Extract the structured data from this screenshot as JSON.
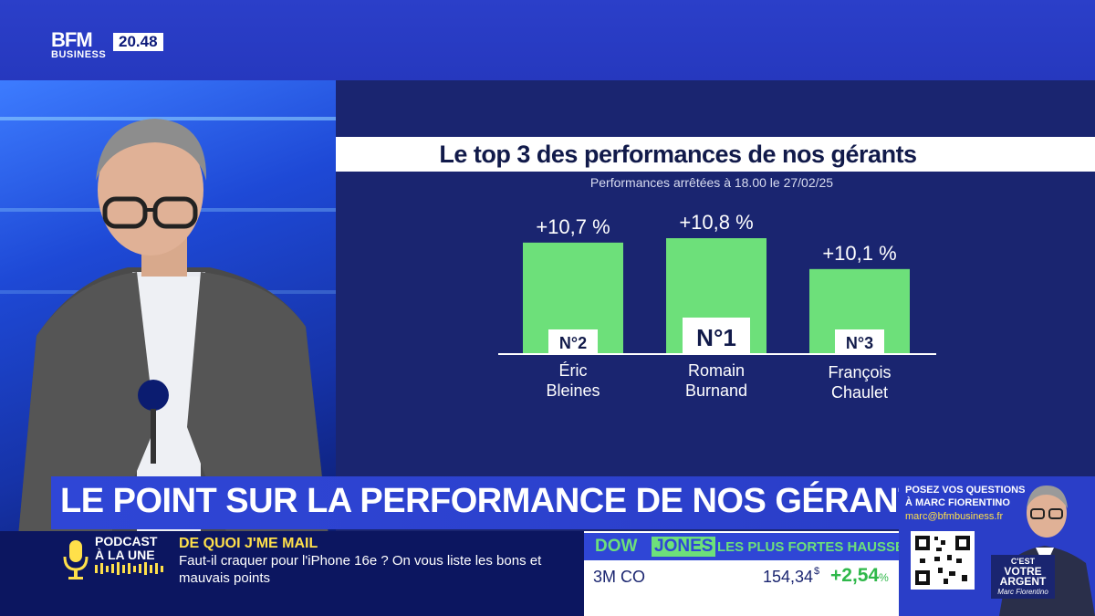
{
  "channel": {
    "logo_main": "BFM",
    "logo_sub": "BUSINESS",
    "time": "20.48"
  },
  "lower_third": {
    "headline": "LE POINT SUR LA PERFORMANCE DE NOS GÉRANTS"
  },
  "ticker": {
    "podcast_label_line1": "PODCAST",
    "podcast_label_line2": "À LA UNE",
    "title": "DE QUOI J'ME MAIL",
    "description": "Faut-il craquer pour l'iPhone 16e ? On vous liste les bons et mauvais points"
  },
  "market": {
    "index_part1": "DOW",
    "index_part2": "JONES",
    "heading": "LES PLUS FORTES HAUSSES",
    "stock_name": "3M CO",
    "stock_value": "154,34",
    "stock_currency": "$",
    "stock_change": "+2,54",
    "stock_change_unit": "%"
  },
  "contact": {
    "line1": "POSEZ VOS QUESTIONS",
    "line2": "À MARC FIORENTINO",
    "email": "marc@bfmbusiness.fr",
    "show_line1": "C'EST",
    "show_line2": "VOTRE",
    "show_line3": "ARGENT",
    "signature": "Marc Fiorentino"
  },
  "colors": {
    "bar": "#6de07a",
    "panel": "#1a2570",
    "accent": "#2f46d6",
    "ticker_title": "#ffe04a"
  },
  "chart_data": {
    "type": "bar",
    "title": "Le top 3 des performances de nos gérants",
    "subtitle": "Performances arrêtées à 18.00 le 27/02/25",
    "categories": [
      "Éric Bleines",
      "Romain Burnand",
      "François Chaulet"
    ],
    "category_lines": [
      [
        "Éric",
        "Bleines"
      ],
      [
        "Romain",
        "Burnand"
      ],
      [
        "François",
        "Chaulet"
      ]
    ],
    "values": [
      10.7,
      10.8,
      10.1
    ],
    "value_labels": [
      "+10,7 %",
      "+10,8 %",
      "+10,1 %"
    ],
    "ranks": [
      "N°2",
      "N°1",
      "N°3"
    ],
    "unit": "%"
  }
}
